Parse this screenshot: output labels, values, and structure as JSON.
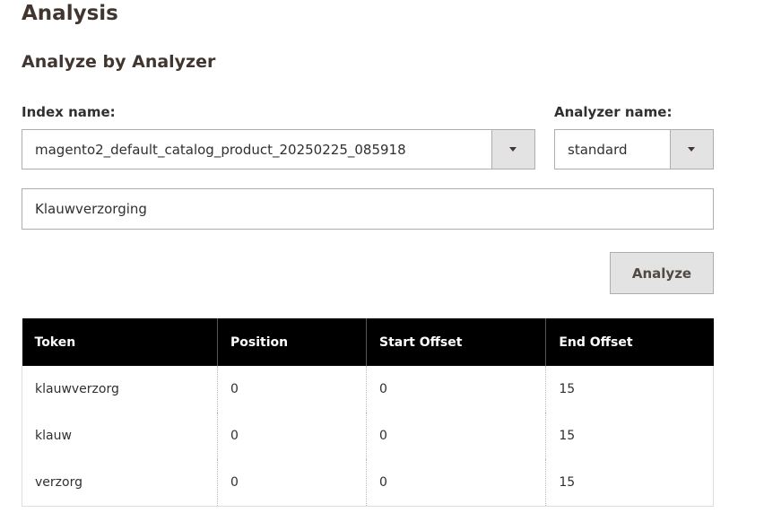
{
  "header": {
    "title": "Analysis",
    "subtitle": "Analyze by Analyzer"
  },
  "form": {
    "index_label": "Index name:",
    "index_value": "magento2_default_catalog_product_20250225_085918",
    "analyzer_label": "Analyzer name:",
    "analyzer_value": "standard",
    "text_value": "Klauwverzorging",
    "button": "Analyze"
  },
  "table": {
    "headers": [
      "Token",
      "Position",
      "Start Offset",
      "End Offset"
    ],
    "rows": [
      [
        "klauwverzorg",
        0,
        0,
        15
      ],
      [
        "klauw",
        0,
        0,
        15
      ],
      [
        "verzorg",
        0,
        0,
        15
      ]
    ]
  }
}
